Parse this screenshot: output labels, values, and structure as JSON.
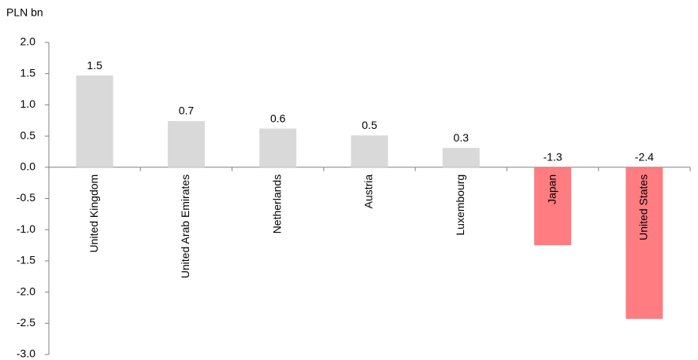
{
  "chart_data": {
    "type": "bar",
    "y_label": "PLN bn",
    "categories": [
      "United Kingdom",
      "United Arab Emirates",
      "Netherlands",
      "Austria",
      "Luxembourg",
      "Japan",
      "United States"
    ],
    "values": [
      1.47,
      0.74,
      0.62,
      0.51,
      0.31,
      -1.25,
      -2.43
    ],
    "value_labels": [
      "1.5",
      "0.7",
      "0.6",
      "0.5",
      "0.3",
      "-1.3",
      "-2.4"
    ],
    "colors": [
      "#d9d9d9",
      "#d9d9d9",
      "#d9d9d9",
      "#d9d9d9",
      "#d9d9d9",
      "#ff7c80",
      "#ff7c80"
    ],
    "ylim": [
      -3,
      2
    ],
    "yticks": [
      {
        "value": 2,
        "label": "2.0"
      },
      1.5,
      {
        "value": 1,
        "label": "1.0"
      },
      0.5,
      {
        "value": 0,
        "label": "0.0"
      },
      -0.5,
      {
        "value": -1,
        "label": "-1.0"
      },
      -1.5,
      {
        "value": -2,
        "label": "-2.0"
      },
      -2.5,
      {
        "value": -3,
        "label": "-3.0"
      }
    ],
    "grid": false
  }
}
